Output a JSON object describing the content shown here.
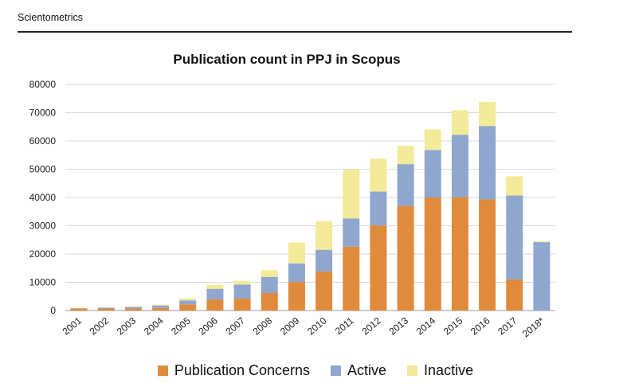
{
  "header": {
    "journal": "Scientometrics"
  },
  "colors": {
    "concerns": "#E08A3C",
    "active": "#8FA7CF",
    "inactive": "#F3EB99",
    "grid": "#D9D9D9",
    "axis": "#999999"
  },
  "chart_data": {
    "type": "bar",
    "stacked": true,
    "title": "Publication count in PPJ in Scopus",
    "xlabel": "",
    "ylabel": "",
    "ylim": [
      0,
      80000
    ],
    "yticks": [
      "0",
      "10000",
      "20000",
      "30000",
      "40000",
      "50000",
      "60000",
      "70000",
      "80000"
    ],
    "grid": true,
    "legend_position": "bottom",
    "categories": [
      "2001",
      "2002",
      "2003",
      "2004",
      "2005",
      "2006",
      "2007",
      "2008",
      "2009",
      "2010",
      "2011",
      "2012",
      "2013",
      "2014",
      "2015",
      "2016",
      "2017",
      "2018*"
    ],
    "series": [
      {
        "name": "Publication Concerns",
        "color": "#E08A3C",
        "values": [
          700,
          700,
          700,
          900,
          2200,
          3900,
          4200,
          6200,
          10100,
          13800,
          22600,
          30100,
          37000,
          40000,
          40100,
          39300,
          11000,
          0
        ]
      },
      {
        "name": "Active",
        "color": "#8FA7CF",
        "values": [
          100,
          300,
          600,
          900,
          1400,
          3800,
          5000,
          5700,
          6600,
          7700,
          10000,
          12000,
          14800,
          16800,
          22100,
          26000,
          29700,
          24200
        ]
      },
      {
        "name": "Inactive",
        "color": "#F3EB99",
        "values": [
          100,
          100,
          200,
          300,
          700,
          1400,
          1300,
          2400,
          7300,
          10100,
          17300,
          11600,
          6500,
          7300,
          8700,
          8500,
          6800,
          300
        ]
      }
    ]
  }
}
